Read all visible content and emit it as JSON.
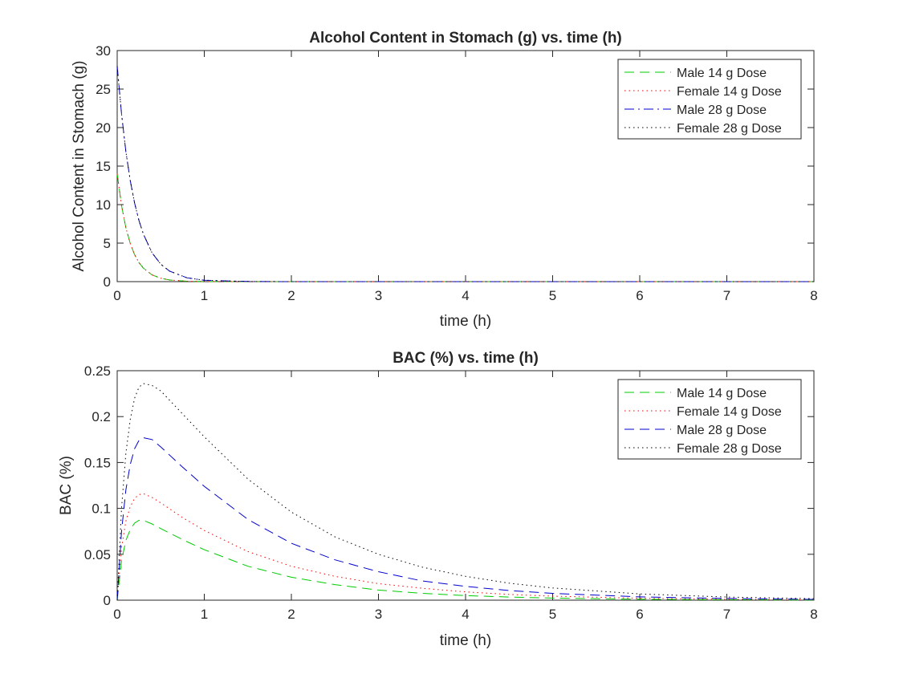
{
  "chart_data": [
    {
      "type": "line",
      "title": "Alcohol Content in Stomach (g) vs. time (h)",
      "xlabel": "time (h)",
      "ylabel": "Alcohol Content in Stomach (g)",
      "xlim": [
        0,
        8
      ],
      "ylim": [
        0,
        30
      ],
      "xticks": [
        0,
        1,
        2,
        3,
        4,
        5,
        6,
        7,
        8
      ],
      "yticks": [
        0,
        5,
        10,
        15,
        20,
        25,
        30
      ],
      "grid": false,
      "legend_position": "top-right",
      "series": [
        {
          "name": "Male 14 g Dose",
          "color": "#00cc00",
          "dash": "dashed",
          "x": [
            0,
            0.05,
            0.1,
            0.15,
            0.2,
            0.25,
            0.3,
            0.4,
            0.5,
            0.6,
            0.8,
            1.0,
            1.5,
            2,
            3,
            4,
            5,
            6,
            7,
            8
          ],
          "y": [
            14,
            9.9,
            7.0,
            4.95,
            3.5,
            2.48,
            1.75,
            0.88,
            0.44,
            0.22,
            0.055,
            0.014,
            0.001,
            0,
            0,
            0,
            0,
            0,
            0,
            0
          ]
        },
        {
          "name": "Female 14 g Dose",
          "color": "#ff0000",
          "dash": "dotted",
          "x": [
            0,
            0.05,
            0.1,
            0.15,
            0.2,
            0.25,
            0.3,
            0.4,
            0.5,
            0.6,
            0.8,
            1.0,
            1.5,
            2,
            3,
            4,
            5,
            6,
            7,
            8
          ],
          "y": [
            14,
            9.9,
            7.0,
            4.95,
            3.5,
            2.48,
            1.75,
            0.88,
            0.44,
            0.22,
            0.055,
            0.014,
            0.001,
            0,
            0,
            0,
            0,
            0,
            0,
            0
          ]
        },
        {
          "name": "Male 28 g Dose",
          "color": "#0000cc",
          "dash": "dashdot",
          "x": [
            0,
            0.05,
            0.1,
            0.15,
            0.2,
            0.25,
            0.3,
            0.4,
            0.5,
            0.6,
            0.8,
            1.0,
            1.5,
            2,
            3,
            4,
            5,
            6,
            7,
            8
          ],
          "y": [
            28,
            21.8,
            16.9,
            13.1,
            10.2,
            7.95,
            6.18,
            3.74,
            2.26,
            1.37,
            0.5,
            0.18,
            0.02,
            0.002,
            0,
            0,
            0,
            0,
            0,
            0
          ]
        },
        {
          "name": "Female 28 g Dose",
          "color": "#000000",
          "dash": "dotted",
          "x": [
            0,
            0.05,
            0.1,
            0.15,
            0.2,
            0.25,
            0.3,
            0.4,
            0.5,
            0.6,
            0.8,
            1.0,
            1.5,
            2,
            3,
            4,
            5,
            6,
            7,
            8
          ],
          "y": [
            28,
            21.8,
            16.9,
            13.1,
            10.2,
            7.95,
            6.18,
            3.74,
            2.26,
            1.37,
            0.5,
            0.18,
            0.02,
            0.002,
            0,
            0,
            0,
            0,
            0,
            0
          ]
        }
      ]
    },
    {
      "type": "line",
      "title": "BAC (%) vs. time (h)",
      "xlabel": "time (h)",
      "ylabel": "BAC (%)",
      "xlim": [
        0,
        8
      ],
      "ylim": [
        0,
        0.25
      ],
      "xticks": [
        0,
        1,
        2,
        3,
        4,
        5,
        6,
        7,
        8
      ],
      "yticks": [
        0,
        0.05,
        0.1,
        0.15,
        0.2,
        0.25
      ],
      "grid": false,
      "legend_position": "top-right",
      "series": [
        {
          "name": "Male 14 g Dose",
          "color": "#00cc00",
          "dash": "dashed",
          "x": [
            0,
            0.05,
            0.1,
            0.15,
            0.2,
            0.25,
            0.3,
            0.4,
            0.5,
            0.75,
            1.0,
            1.5,
            2,
            2.5,
            3,
            3.5,
            4,
            4.5,
            5,
            6,
            7,
            8
          ],
          "y": [
            0,
            0.043,
            0.065,
            0.077,
            0.084,
            0.087,
            0.087,
            0.083,
            0.078,
            0.066,
            0.055,
            0.037,
            0.025,
            0.017,
            0.011,
            0.0075,
            0.005,
            0.0034,
            0.0023,
            0.001,
            0.0005,
            0.0002
          ]
        },
        {
          "name": "Female 14 g Dose",
          "color": "#ff0000",
          "dash": "dotted",
          "x": [
            0,
            0.05,
            0.1,
            0.15,
            0.2,
            0.25,
            0.3,
            0.4,
            0.5,
            0.75,
            1.0,
            1.5,
            2,
            2.5,
            3,
            3.5,
            4,
            4.5,
            5,
            6,
            7,
            8
          ],
          "y": [
            0,
            0.057,
            0.086,
            0.102,
            0.111,
            0.115,
            0.116,
            0.112,
            0.106,
            0.09,
            0.076,
            0.053,
            0.037,
            0.026,
            0.018,
            0.013,
            0.009,
            0.0063,
            0.0044,
            0.0021,
            0.001,
            0.0005
          ]
        },
        {
          "name": "Male 28 g Dose",
          "color": "#0000cc",
          "dash": "dashed",
          "x": [
            0,
            0.05,
            0.1,
            0.15,
            0.2,
            0.25,
            0.3,
            0.4,
            0.5,
            0.75,
            1.0,
            1.5,
            2,
            2.5,
            3,
            3.5,
            4,
            4.5,
            5,
            6,
            7,
            8
          ],
          "y": [
            0,
            0.075,
            0.12,
            0.148,
            0.165,
            0.174,
            0.177,
            0.175,
            0.167,
            0.145,
            0.124,
            0.088,
            0.062,
            0.044,
            0.031,
            0.021,
            0.015,
            0.0105,
            0.0074,
            0.0036,
            0.0018,
            0.0009
          ]
        },
        {
          "name": "Female 28 g Dose",
          "color": "#000000",
          "dash": "dotted",
          "x": [
            0,
            0.05,
            0.1,
            0.15,
            0.2,
            0.25,
            0.3,
            0.4,
            0.5,
            0.75,
            1.0,
            1.5,
            2,
            2.5,
            3,
            3.5,
            4,
            4.5,
            5,
            6,
            7,
            8
          ],
          "y": [
            0,
            0.1,
            0.16,
            0.197,
            0.22,
            0.232,
            0.236,
            0.234,
            0.228,
            0.203,
            0.178,
            0.132,
            0.096,
            0.069,
            0.05,
            0.036,
            0.026,
            0.0185,
            0.0133,
            0.0068,
            0.0034,
            0.0017
          ]
        }
      ]
    }
  ]
}
